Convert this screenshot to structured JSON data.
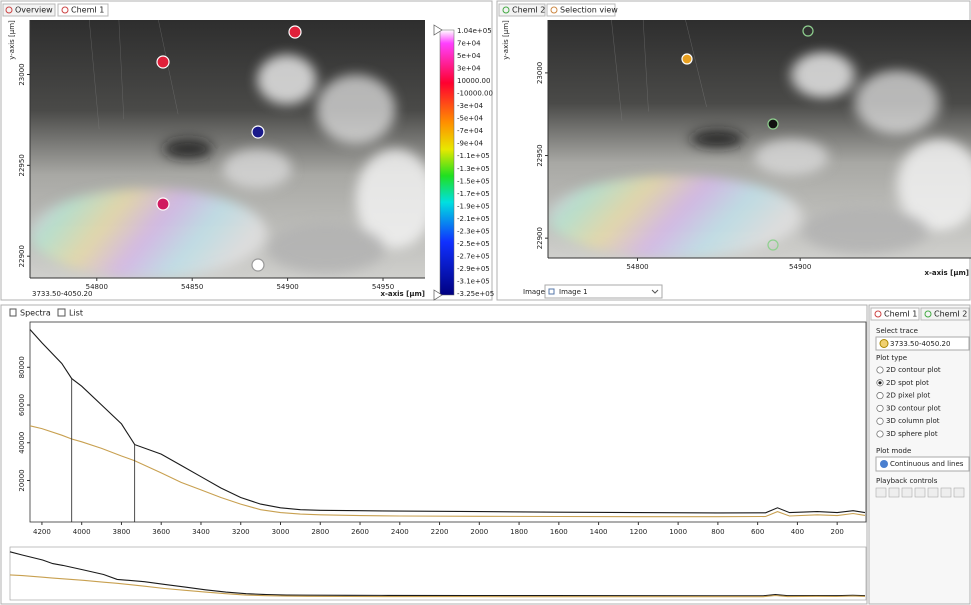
{
  "left_view": {
    "tabs": [
      "Overview",
      "ChemI 1"
    ],
    "y_label": "y-axis [µm]",
    "x_label": "x-axis [µm]",
    "xlim": [
      54765,
      54972
    ],
    "ylim": [
      22888,
      23030
    ],
    "xticks": [
      54800,
      54850,
      54900,
      54950
    ],
    "yticks": [
      23000,
      22950,
      22900
    ],
    "range_label": "3733.50-4050.20",
    "scale_labels": [
      "1.04e+05",
      "7e+04",
      "5e+04",
      "3e+04",
      "10000.00",
      "-10000.00",
      "-3e+04",
      "-5e+04",
      "-7e+04",
      "-9e+04",
      "-1.1e+05",
      "-1.3e+05",
      "-1.5e+05",
      "-1.7e+05",
      "-1.9e+05",
      "-2.1e+05",
      "-2.3e+05",
      "-2.5e+05",
      "-2.7e+05",
      "-2.9e+05",
      "-3.1e+05",
      "-3.25e+05"
    ]
  },
  "right_view": {
    "tabs": [
      "ChemI 2",
      "Selection view"
    ],
    "y_label": "y-axis [µm]",
    "x_label": "x-axis [µm]",
    "xlim": [
      54745,
      55005
    ],
    "ylim": [
      22888,
      23032
    ],
    "xticks": [
      54800,
      54900
    ],
    "yticks": [
      23000,
      22950,
      22900
    ],
    "image_label": "Image:",
    "image_select": "Image 1"
  },
  "spectra": {
    "tabs": [
      "Spectra",
      "List"
    ],
    "type": "line",
    "x": [
      4260,
      4200,
      4100,
      4050.2,
      4000,
      3900,
      3800,
      3733.5,
      3600,
      3500,
      3400,
      3300,
      3200,
      3100,
      3000,
      2900,
      2800,
      2600,
      2400,
      2000,
      1600,
      1200,
      800,
      560,
      500,
      440,
      300,
      200,
      120,
      60
    ],
    "series": [
      {
        "color": "#1a1a1a",
        "values": [
          100000,
          93000,
          82000,
          74000,
          70000,
          60000,
          50000,
          39000,
          34000,
          28000,
          22000,
          16000,
          11000,
          7500,
          5500,
          4500,
          4200,
          4000,
          3800,
          3500,
          3200,
          3000,
          2800,
          2900,
          5500,
          3000,
          3500,
          3000,
          4000,
          3000
        ]
      },
      {
        "color": "#c8a050",
        "values": [
          49000,
          47500,
          44000,
          42000,
          40500,
          37000,
          33000,
          30500,
          24000,
          19000,
          15000,
          11000,
          7500,
          4500,
          3000,
          2200,
          1800,
          1400,
          1200,
          1000,
          900,
          800,
          800,
          900,
          3500,
          1200,
          1800,
          1400,
          2500,
          1500
        ]
      }
    ],
    "xlim": [
      4260,
      55
    ],
    "ylim": [
      -2000,
      104000
    ],
    "xticks": [
      4200,
      4000,
      3800,
      3600,
      3400,
      3200,
      3000,
      2800,
      2600,
      2400,
      2200,
      2000,
      1800,
      1600,
      1400,
      1200,
      1000,
      800,
      600,
      400,
      200
    ],
    "yticks": [
      20000,
      40000,
      60000,
      80000
    ],
    "cursors": [
      4050.2,
      3733.5
    ]
  },
  "sidebar": {
    "tabs": [
      "ChemI 1",
      "ChemI 2"
    ],
    "select_trace_label": "Select trace",
    "trace": "3733.50-4050.20",
    "plot_type_label": "Plot type",
    "plot_types": [
      "2D contour plot",
      "2D spot plot",
      "2D pixel plot",
      "3D contour plot",
      "3D column plot",
      "3D sphere plot"
    ],
    "selected_plot_type": 1,
    "plot_mode_label": "Plot mode",
    "plot_mode": "Continuous and lines",
    "playback_label": "Playback controls"
  }
}
